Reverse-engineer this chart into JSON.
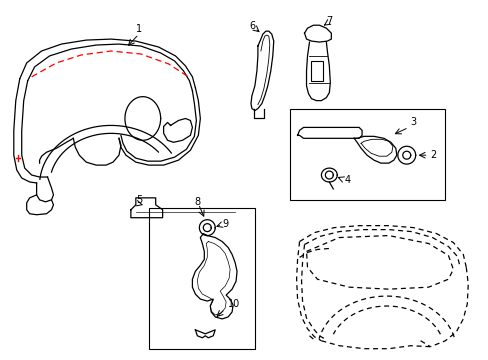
{
  "background_color": "#ffffff",
  "line_color": "#000000",
  "red_dashed_color": "#ff0000",
  "figsize": [
    4.89,
    3.6
  ],
  "dpi": 100
}
